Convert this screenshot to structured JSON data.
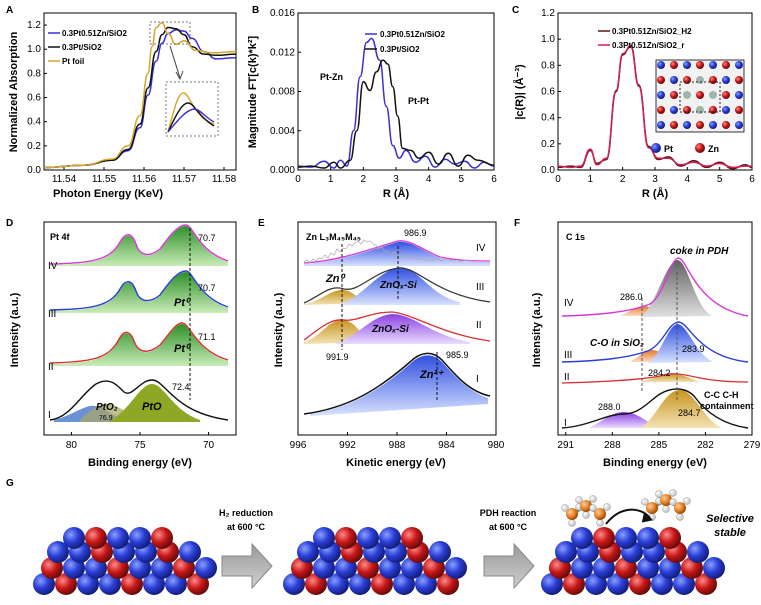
{
  "chart_data": [
    {
      "id": "A",
      "type": "line",
      "xlabel": "Photon Energy (KeV)",
      "ylabel": "Normalized Absorption",
      "xlim": [
        11.535,
        11.583
      ],
      "ylim": [
        0,
        1.3
      ],
      "xticks": [
        "11.54",
        "11.55",
        "11.56",
        "11.57",
        "11.58"
      ],
      "yticks": [
        "0.0",
        "0.2",
        "0.4",
        "0.6",
        "0.8",
        "1.0",
        "1.2"
      ],
      "series": [
        {
          "name": "0.3Pt0.51Zn/SiO2",
          "color": "#3a2fd6",
          "x": [
            11.535,
            11.545,
            11.552,
            11.556,
            11.559,
            11.561,
            11.563,
            11.5645,
            11.566,
            11.568,
            11.57,
            11.572,
            11.575,
            11.578,
            11.583
          ],
          "y": [
            0.02,
            0.04,
            0.08,
            0.16,
            0.35,
            0.62,
            0.9,
            1.05,
            1.13,
            1.16,
            1.15,
            1.09,
            0.98,
            0.92,
            0.93
          ]
        },
        {
          "name": "0.3Pt/SiO2",
          "color": "#111111",
          "x": [
            11.535,
            11.545,
            11.552,
            11.556,
            11.559,
            11.561,
            11.563,
            11.5645,
            11.566,
            11.568,
            11.57,
            11.572,
            11.575,
            11.578,
            11.583
          ],
          "y": [
            0.02,
            0.04,
            0.08,
            0.17,
            0.38,
            0.68,
            0.98,
            1.12,
            1.18,
            1.17,
            1.12,
            1.02,
            0.96,
            0.95,
            0.96
          ]
        },
        {
          "name": "Pt foil",
          "color": "#d4a62a",
          "x": [
            11.535,
            11.545,
            11.552,
            11.556,
            11.559,
            11.561,
            11.562,
            11.563,
            11.5645,
            11.566,
            11.568,
            11.57,
            11.573,
            11.577,
            11.583
          ],
          "y": [
            0.02,
            0.04,
            0.09,
            0.2,
            0.45,
            0.8,
            1.02,
            1.18,
            1.22,
            1.13,
            1.04,
            1.07,
            0.99,
            0.97,
            0.98
          ]
        }
      ]
    },
    {
      "id": "B",
      "type": "line",
      "xlabel": "R (Å)",
      "ylabel": "Magnitude FT[c(k)*k²]",
      "xlim": [
        0,
        6
      ],
      "ylim": [
        0,
        0.016
      ],
      "xticks": [
        "0",
        "1",
        "2",
        "3",
        "4",
        "5",
        "6"
      ],
      "yticks": [
        "0.000",
        "0.004",
        "0.008",
        "0.012",
        "0.016"
      ],
      "annotations": [
        "Pt-Zn",
        "Pt-Pt"
      ],
      "series": [
        {
          "name": "0.3Pt0.51Zn/SiO2",
          "color": "#3a2fd6",
          "x": [
            0,
            0.4,
            0.8,
            1.1,
            1.3,
            1.5,
            1.7,
            1.9,
            2.1,
            2.25,
            2.5,
            2.7,
            2.9,
            3.1,
            3.3,
            3.6,
            3.9,
            4.2,
            4.5,
            4.8,
            5.1,
            5.4,
            5.7,
            6.0
          ],
          "y": [
            0.0004,
            0.0003,
            0.0009,
            0.0002,
            0.001,
            0.0004,
            0.004,
            0.0095,
            0.013,
            0.0134,
            0.0112,
            0.0065,
            0.0025,
            0.0012,
            0.002,
            0.0008,
            0.0014,
            0.0003,
            0.0011,
            0.0006,
            0.0009,
            0.0002,
            0.0008,
            0.0004
          ]
        },
        {
          "name": "0.3Pt/SiO2",
          "color": "#111111",
          "x": [
            0,
            0.4,
            0.8,
            1.1,
            1.3,
            1.6,
            1.8,
            2.0,
            2.2,
            2.4,
            2.6,
            2.75,
            2.9,
            3.05,
            3.2,
            3.45,
            3.7,
            4.0,
            4.3,
            4.6,
            4.9,
            5.2,
            5.5,
            6.0
          ],
          "y": [
            0.0003,
            0.0004,
            0.0002,
            0.0008,
            0.0002,
            0.001,
            0.004,
            0.009,
            0.0081,
            0.01,
            0.0112,
            0.0108,
            0.0085,
            0.0055,
            0.0022,
            0.002,
            0.0012,
            0.0018,
            0.0006,
            0.0017,
            0.0004,
            0.0015,
            0.001,
            0.0005
          ]
        }
      ]
    },
    {
      "id": "C",
      "type": "line",
      "xlabel": "R (Å)",
      "ylabel": "|c(R)| (Å⁻³)",
      "xlim": [
        0,
        6
      ],
      "ylim": [
        0,
        1.2
      ],
      "xticks": [
        "0",
        "1",
        "2",
        "3",
        "4",
        "5",
        "6"
      ],
      "yticks": [
        "0.0",
        "0.2",
        "0.4",
        "0.6",
        "0.8",
        "1.0",
        "1.2"
      ],
      "inset_legend": [
        "Pt",
        "Zn"
      ],
      "series": [
        {
          "name": "0.3Pt0.51Zn/SiO2_H2",
          "color": "#5a1414",
          "x": [
            0,
            0.4,
            0.7,
            1.0,
            1.2,
            1.5,
            1.8,
            2.0,
            2.25,
            2.5,
            2.8,
            3.1,
            3.4,
            3.8,
            4.2,
            4.6,
            5.0,
            5.4,
            5.8,
            6.0
          ],
          "y": [
            0.02,
            0.03,
            0.02,
            0.15,
            0.05,
            0.08,
            0.6,
            0.88,
            0.95,
            0.65,
            0.18,
            0.08,
            0.1,
            0.03,
            0.07,
            0.02,
            0.06,
            0.01,
            0.04,
            0.02
          ]
        },
        {
          "name": "0.3Pt0.51Zn/SiO2_r",
          "color": "#d11f55",
          "x": [
            0,
            0.4,
            0.7,
            1.0,
            1.2,
            1.5,
            1.8,
            2.0,
            2.25,
            2.5,
            2.8,
            3.1,
            3.4,
            3.8,
            4.2,
            4.6,
            5.0,
            5.4,
            5.8,
            6.0
          ],
          "y": [
            0.03,
            0.02,
            0.03,
            0.16,
            0.04,
            0.09,
            0.61,
            0.89,
            0.94,
            0.64,
            0.17,
            0.09,
            0.09,
            0.04,
            0.06,
            0.03,
            0.05,
            0.02,
            0.03,
            0.03
          ]
        }
      ]
    },
    {
      "id": "D",
      "type": "xps-stack",
      "title": "Pt 4f",
      "xlabel": "Binding energy (eV)",
      "ylabel": "Intensity (a.u.)",
      "xlim": [
        82,
        68
      ],
      "xticks": [
        "80",
        "75",
        "70"
      ],
      "rows": [
        "IV",
        "III",
        "II",
        "I"
      ],
      "peak_labels": [
        "70.7",
        "70.7",
        "71.1",
        "72.4",
        "Pt⁰",
        "Pt⁰",
        "PtO₂",
        "76.9",
        "PtO"
      ]
    },
    {
      "id": "E",
      "type": "xps-stack",
      "title": "Zn L₃M₄₅M₄₅",
      "xlabel": "Kinetic energy (eV)",
      "ylabel": "Intensity (a.u.)",
      "xlim": [
        996,
        980
      ],
      "xticks": [
        "996",
        "992",
        "988",
        "984",
        "980"
      ],
      "rows": [
        "IV",
        "III",
        "II",
        "I"
      ],
      "peak_labels": [
        "986.9",
        "Zn⁰",
        "ZnOₓ-Si",
        "ZnOₓ-Si",
        "991.9",
        "Zn²⁺",
        "985.9"
      ]
    },
    {
      "id": "F",
      "type": "xps-stack",
      "title": "C 1s",
      "xlabel": "Binding energy (eV)",
      "ylabel": "Intensity (a.u.)",
      "xlim": [
        291.5,
        279
      ],
      "xticks": [
        "291",
        "288",
        "285",
        "282",
        "279"
      ],
      "rows": [
        "IV",
        "III",
        "II",
        "I"
      ],
      "peak_labels": [
        "coke in PDH",
        "286.0",
        "C-O in SiO₂",
        "283.9",
        "284.2",
        "288.0",
        "284.7",
        "C-C C-H",
        "containment"
      ]
    }
  ],
  "panel_g": {
    "label": "G",
    "step1_line1": "H₂ reduction",
    "step1_line2": "at 600 °C",
    "step2_line1": "PDH reaction",
    "step2_line2": "at 600 °C",
    "result_line1": "Selective",
    "result_line2": "stable"
  },
  "colors": {
    "blue_atom": "#2a3ed6",
    "red_atom": "#c81818",
    "green_fill": "#4aa83a",
    "legend_pt": "#2a3ed6",
    "legend_zn": "#b81c1c"
  }
}
